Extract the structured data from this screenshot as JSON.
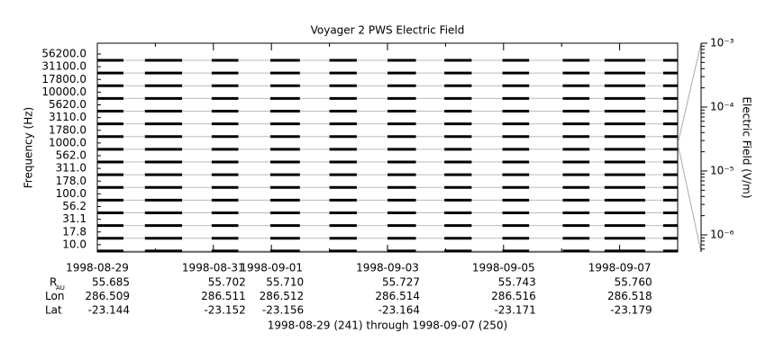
{
  "chart_data": {
    "type": "stackplot",
    "title": "Voyager 2 PWS Electric Field",
    "y_label": "Frequency (Hz)",
    "y2_label": "Electric Field (V/m)",
    "x_label": "1998-08-29 (241) through 1998-09-07 (250)",
    "categories": [
      "56200.0",
      "31100.0",
      "17800.0",
      "10000.0",
      "5620.0",
      "3110.0",
      "1780.0",
      "1000.0",
      "562.0",
      "311.0",
      "178.0",
      "100.0",
      "56.2",
      "31.1",
      "17.8",
      "10.0"
    ],
    "coverage": [
      [
        241.0,
        241.45
      ],
      [
        241.82,
        242.46
      ],
      [
        242.97,
        243.43
      ],
      [
        243.98,
        244.49
      ],
      [
        245.0,
        245.47
      ],
      [
        246.0,
        246.49
      ],
      [
        246.98,
        247.45
      ],
      [
        247.98,
        248.44
      ],
      [
        249.02,
        249.48
      ],
      [
        249.74,
        250.44
      ],
      [
        250.75,
        251.0
      ]
    ],
    "color": "#000000",
    "xlim": [
      241,
      251
    ],
    "xticks": [
      {
        "value": 241,
        "label": "1998-08-29"
      },
      {
        "value": 243,
        "label": "1998-08-31"
      },
      {
        "value": 244,
        "label": "1998-09-01"
      },
      {
        "value": 246,
        "label": "1998-09-03"
      },
      {
        "value": 248,
        "label": "1998-09-05"
      },
      {
        "value": 250,
        "label": "1998-09-07"
      }
    ],
    "xminorticks": [
      242,
      245,
      247,
      249
    ],
    "y2lim": [
      5.4e-07,
      0.001
    ],
    "y2ticks": [
      {
        "value": 0.001,
        "label": "10⁻³"
      },
      {
        "value": 0.0001,
        "label": "10⁻⁴"
      },
      {
        "value": 1e-05,
        "label": "10⁻⁵"
      },
      {
        "value": 1e-06,
        "label": "10⁻⁶"
      }
    ],
    "y2_log": true,
    "ephemeris": [
      {
        "name": "R",
        "subscript": "AU",
        "values": [
          "55.685",
          "55.702",
          "55.710",
          "55.727",
          "55.743",
          "55.760"
        ]
      },
      {
        "name": "Lon",
        "values": [
          "286.509",
          "286.511",
          "286.512",
          "286.514",
          "286.516",
          "286.518"
        ]
      },
      {
        "name": "Lat",
        "values": [
          "-23.144",
          "-23.152",
          "-23.156",
          "-23.164",
          "-23.171",
          "-23.179"
        ]
      }
    ]
  }
}
